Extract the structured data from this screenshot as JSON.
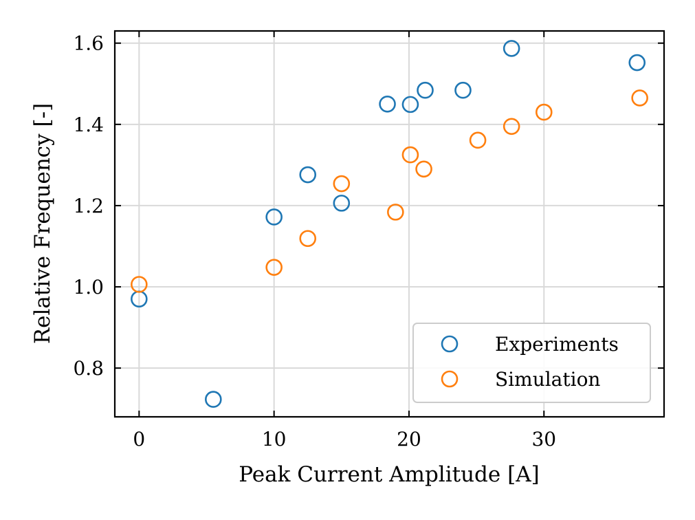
{
  "chart_data": {
    "type": "scatter",
    "xlabel": "Peak Current Amplitude [A]",
    "ylabel": "Relative Frequency [-]",
    "xlim": [
      -1.8,
      38.9
    ],
    "ylim": [
      0.68,
      1.63
    ],
    "xticks": [
      0,
      10,
      20,
      30
    ],
    "xtick_labels": [
      "0",
      "10",
      "20",
      "30"
    ],
    "yticks": [
      0.8,
      1.0,
      1.2,
      1.4,
      1.6
    ],
    "ytick_labels": [
      "0.8",
      "1.0",
      "1.2",
      "1.4",
      "1.6"
    ],
    "grid": true,
    "legend_position": "lower-right",
    "marker": "open-circle",
    "series": [
      {
        "name": "Experiments",
        "color": "#1f77b4",
        "points": [
          [
            0,
            0.97
          ],
          [
            5.5,
            0.723
          ],
          [
            10,
            1.172
          ],
          [
            12.5,
            1.276
          ],
          [
            15,
            1.206
          ],
          [
            18.4,
            1.45
          ],
          [
            20.1,
            1.449
          ],
          [
            21.2,
            1.484
          ],
          [
            24,
            1.484
          ],
          [
            27.6,
            1.587
          ],
          [
            36.9,
            1.552
          ]
        ]
      },
      {
        "name": "Simulation",
        "color": "#ff7f0e",
        "points": [
          [
            0,
            1.006
          ],
          [
            10,
            1.048
          ],
          [
            12.5,
            1.119
          ],
          [
            15,
            1.254
          ],
          [
            19,
            1.184
          ],
          [
            20.1,
            1.325
          ],
          [
            21.1,
            1.29
          ],
          [
            25.1,
            1.361
          ],
          [
            27.6,
            1.395
          ],
          [
            30,
            1.43
          ],
          [
            37.1,
            1.465
          ]
        ]
      }
    ]
  }
}
